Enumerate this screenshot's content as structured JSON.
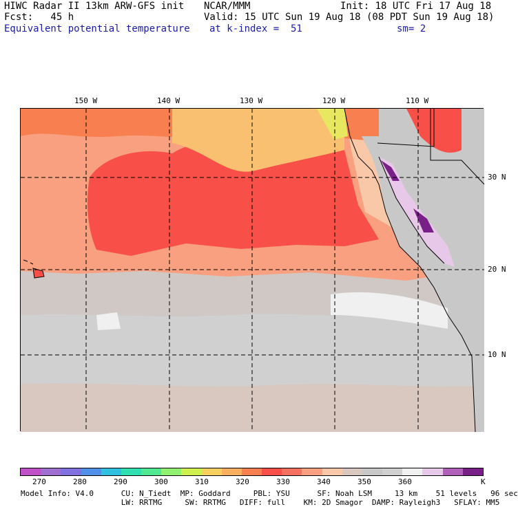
{
  "header": {
    "line1_left": "HIWC Radar II 13km ARW-GFS init",
    "line1_center": "NCAR/MMM",
    "line1_right": "Init: 18 UTC Fri 17 Aug 18",
    "line2_left": "Fcst:   45 h",
    "line2_right": "Valid: 15 UTC Sun 19 Aug 18 (08 PDT Sun 19 Aug 18)",
    "line3_field": "Equivalent potential temperature",
    "line3_level": "at k-index =  51",
    "line3_smooth": "sm= 2"
  },
  "map": {
    "lon_labels": [
      "150 W",
      "140 W",
      "130 W",
      "120 W",
      "110 W"
    ],
    "lat_labels": [
      "30 N",
      "20 N",
      "10 N"
    ]
  },
  "colorbar": {
    "colors": [
      "#c050c8",
      "#a070d0",
      "#8070e0",
      "#5090e8",
      "#30c0e0",
      "#30e0b0",
      "#50e890",
      "#90f070",
      "#d0f050",
      "#f8d060",
      "#f8b060",
      "#f88050",
      "#f85048",
      "#f87060",
      "#f8a080",
      "#f8c8a8",
      "#d8c8c0",
      "#c8c8c8",
      "#d0d0d0",
      "#f0f0f0",
      "#e8c8e8",
      "#b060b8",
      "#782088"
    ],
    "tick_labels": [
      "270",
      "280",
      "290",
      "300",
      "310",
      "320",
      "330",
      "340",
      "350",
      "360"
    ],
    "unit": "K"
  },
  "footer": {
    "line1": "Model Info: V4.0      CU: N_Tiedt  MP: Goddard     PBL: YSU      SF: Noah LSM     13 km    51 levels   96 sec",
    "line2": "                      LW: RRTMG     SW: RRTMG   DIFF: full    KM: 2D Smagor  DAMP: Rayleigh3   SFLAY: MM5"
  },
  "legend_colors": {
    "ocean_warm": "#f85048",
    "ocean_mid": "#f8a080",
    "ocean_tan": "#f8c8a8",
    "ocean_grey": "#c8c8c8",
    "ocean_light": "#f0f0f0",
    "yellow": "#f8d060",
    "land_grey": "#c8c8c8",
    "purple": "#782088",
    "lavender": "#e8c8e8"
  }
}
